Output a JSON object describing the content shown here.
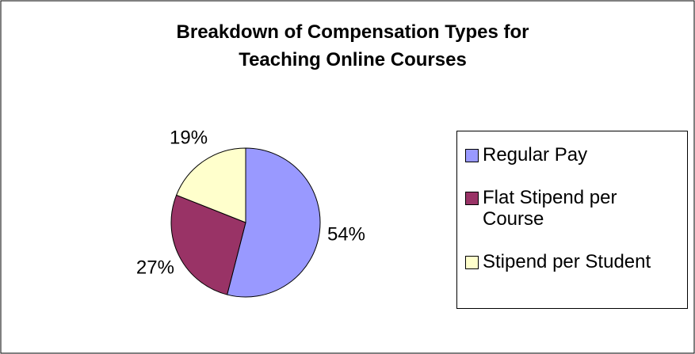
{
  "chart_data": {
    "type": "pie",
    "title": [
      "Breakdown of Compensation Types for",
      "Teaching Online Courses"
    ],
    "categories": [
      "Regular Pay",
      "Flat Stipend per Course",
      "Stipend per Student"
    ],
    "values": [
      54,
      27,
      19
    ],
    "value_labels": [
      "54%",
      "27%",
      "19%"
    ],
    "colors": [
      "#9999ff",
      "#993366",
      "#ffffcc"
    ],
    "legend": "right"
  }
}
